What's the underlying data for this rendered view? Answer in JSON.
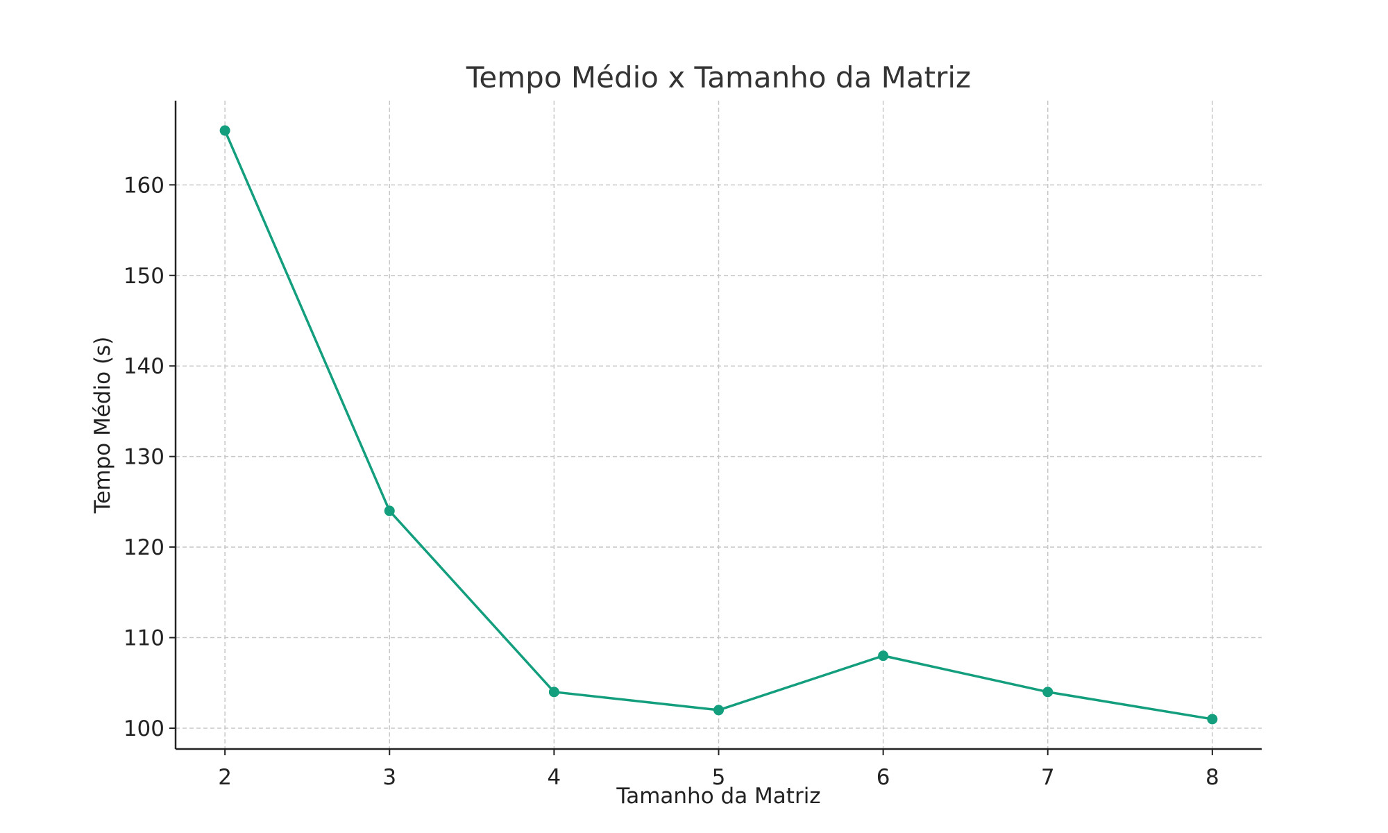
{
  "chart_data": {
    "type": "line",
    "title": "Tempo Médio x Tamanho da Matriz",
    "xlabel": "Tamanho da Matriz",
    "ylabel": "Tempo Médio (s)",
    "x": [
      2,
      3,
      4,
      5,
      6,
      7,
      8
    ],
    "series": [
      {
        "values": [
          166,
          124,
          104,
          102,
          108,
          104,
          101
        ],
        "color": "#139e7e"
      }
    ],
    "xticks": [
      2,
      3,
      4,
      5,
      6,
      7,
      8
    ],
    "yticks": [
      100,
      110,
      120,
      130,
      140,
      150,
      160
    ],
    "xlim": [
      1.7,
      8.3
    ],
    "ylim": [
      97.7,
      169.3
    ],
    "grid": true,
    "grid_style": "dashed",
    "marker": "circle"
  }
}
